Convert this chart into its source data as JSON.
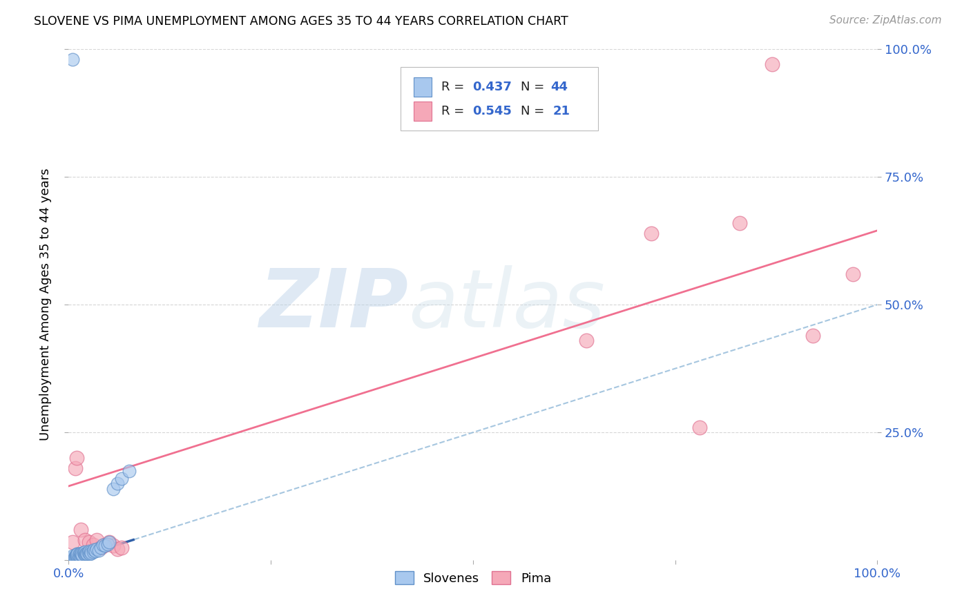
{
  "title": "SLOVENE VS PIMA UNEMPLOYMENT AMONG AGES 35 TO 44 YEARS CORRELATION CHART",
  "source": "Source: ZipAtlas.com",
  "ylabel": "Unemployment Among Ages 35 to 44 years",
  "xlim": [
    0.0,
    1.0
  ],
  "ylim": [
    0.0,
    1.0
  ],
  "slovene_color": "#A8C8EE",
  "slovene_edge_color": "#6090C8",
  "pima_color": "#F5A8B8",
  "pima_edge_color": "#E07090",
  "slovene_line_solid_color": "#3060A8",
  "slovene_line_dash_color": "#90B8D8",
  "pima_line_color": "#F07090",
  "legend_R_slovene": "0.437",
  "legend_N_slovene": "44",
  "legend_R_pima": "0.545",
  "legend_N_pima": "21",
  "watermark_zip": "ZIP",
  "watermark_atlas": "atlas",
  "background_color": "#ffffff",
  "grid_color": "#cccccc",
  "slovene_x": [
    0.005,
    0.005,
    0.007,
    0.008,
    0.009,
    0.01,
    0.01,
    0.01,
    0.01,
    0.011,
    0.012,
    0.013,
    0.014,
    0.015,
    0.015,
    0.016,
    0.017,
    0.018,
    0.019,
    0.02,
    0.02,
    0.021,
    0.022,
    0.023,
    0.024,
    0.025,
    0.026,
    0.027,
    0.028,
    0.03,
    0.031,
    0.033,
    0.035,
    0.037,
    0.04,
    0.042,
    0.045,
    0.048,
    0.05,
    0.055,
    0.06,
    0.065,
    0.075,
    0.005
  ],
  "slovene_y": [
    0.005,
    0.008,
    0.006,
    0.007,
    0.009,
    0.01,
    0.012,
    0.008,
    0.011,
    0.013,
    0.01,
    0.012,
    0.009,
    0.011,
    0.014,
    0.013,
    0.01,
    0.015,
    0.012,
    0.011,
    0.016,
    0.013,
    0.014,
    0.012,
    0.015,
    0.018,
    0.013,
    0.016,
    0.014,
    0.017,
    0.02,
    0.018,
    0.022,
    0.019,
    0.025,
    0.03,
    0.028,
    0.032,
    0.035,
    0.14,
    0.15,
    0.16,
    0.175,
    0.98
  ],
  "pima_x": [
    0.005,
    0.008,
    0.01,
    0.015,
    0.02,
    0.025,
    0.03,
    0.035,
    0.04,
    0.045,
    0.05,
    0.055,
    0.06,
    0.065,
    0.64,
    0.72,
    0.78,
    0.83,
    0.87,
    0.92,
    0.97
  ],
  "pima_y": [
    0.035,
    0.18,
    0.2,
    0.06,
    0.04,
    0.035,
    0.03,
    0.04,
    0.025,
    0.03,
    0.035,
    0.028,
    0.022,
    0.025,
    0.43,
    0.64,
    0.26,
    0.66,
    0.97,
    0.44,
    0.56
  ],
  "pima_intercept": 0.145,
  "pima_slope": 0.5,
  "slovene_intercept": 0.0,
  "slovene_slope": 0.5
}
